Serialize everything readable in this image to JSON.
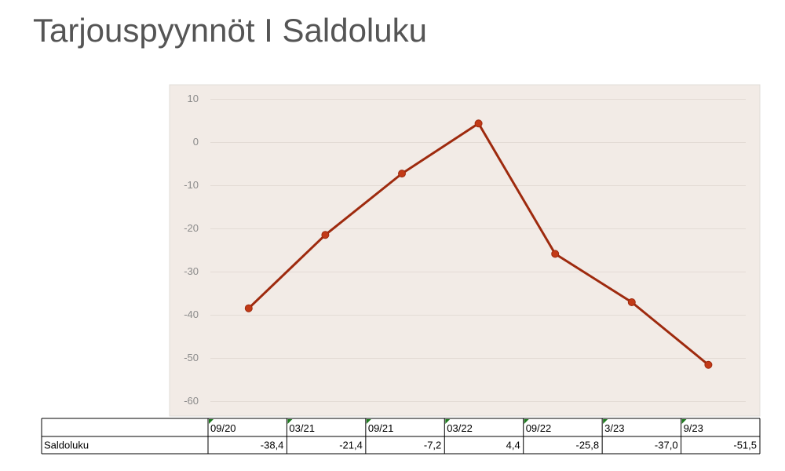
{
  "chart_data": {
    "type": "line",
    "title": "Tarjouspyynnöt I Saldoluku",
    "categories": [
      "09/20",
      "03/21",
      "09/21",
      "03/22",
      "09/22",
      "3/23",
      "9/23"
    ],
    "series": [
      {
        "name": "Saldoluku",
        "color": "#9e2a0e",
        "marker_color": "#c23a17",
        "values": [
          -38.4,
          -21.4,
          -7.2,
          4.4,
          -25.8,
          -37.0,
          -51.5
        ],
        "value_labels": [
          "-38,4",
          "-21,4",
          "-7,2",
          "4,4",
          "-25,8",
          "-37,0",
          "-51,5"
        ]
      }
    ],
    "ylim": [
      -63,
      13
    ],
    "yticks": [
      10,
      0,
      -10,
      -20,
      -30,
      -40,
      -50,
      -60
    ],
    "grid": true,
    "plot_background": "#f2ebe6"
  }
}
